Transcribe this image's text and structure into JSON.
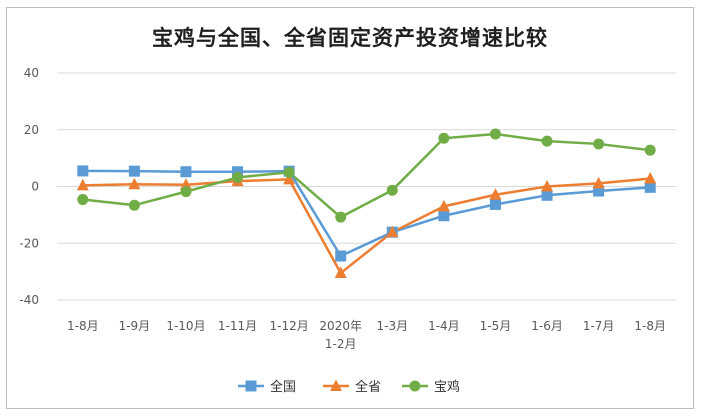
{
  "chart_data": {
    "type": "line",
    "title": "宝鸡与全国、全省固定资产投资增速比较",
    "categories": [
      "1-8月",
      "1-9月",
      "1-10月",
      "1-11月",
      "1-12月",
      "2020年\n1-2月",
      "1-3月",
      "1-4月",
      "1-5月",
      "1-6月",
      "1-7月",
      "1-8月"
    ],
    "ylim": [
      -40,
      40
    ],
    "yticks": [
      -40,
      -20,
      0,
      20,
      40
    ],
    "grid": true,
    "legend_position": "bottom",
    "series": [
      {
        "name": "全国",
        "color": "#5b9bd5",
        "marker": "square",
        "values": [
          5.5,
          5.4,
          5.2,
          5.2,
          5.4,
          -24.5,
          -16.1,
          -10.3,
          -6.3,
          -3.1,
          -1.6,
          -0.3
        ]
      },
      {
        "name": "全省",
        "color": "#ed7d31",
        "marker": "triangle",
        "values": [
          0.4,
          0.8,
          0.6,
          1.9,
          2.5,
          -30.5,
          -16.1,
          -7.0,
          -2.9,
          0.0,
          1.1,
          2.8
        ]
      },
      {
        "name": "宝鸡",
        "color": "#70ad47",
        "marker": "circle",
        "values": [
          -4.6,
          -6.6,
          -1.8,
          3.2,
          5.0,
          -10.8,
          -1.3,
          17.0,
          18.5,
          16.0,
          15.0,
          12.8
        ]
      }
    ]
  }
}
